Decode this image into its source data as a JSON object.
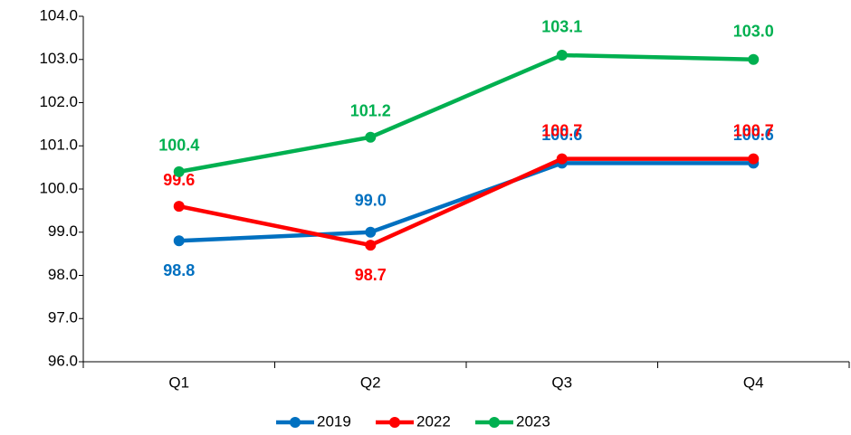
{
  "chart_data": {
    "type": "line",
    "categories": [
      "Q1",
      "Q2",
      "Q3",
      "Q4"
    ],
    "series": [
      {
        "name": "2019",
        "color": "#0070c0",
        "values": [
          98.8,
          99.0,
          100.6,
          100.6
        ],
        "value_labels": [
          "98.8",
          "99.0",
          "100.6",
          "100.6"
        ]
      },
      {
        "name": "2022",
        "color": "#ff0000",
        "values": [
          99.6,
          98.7,
          100.7,
          100.7
        ],
        "value_labels": [
          "99.6",
          "98.7",
          "100.7",
          "100.7"
        ]
      },
      {
        "name": "2023",
        "color": "#00b050",
        "values": [
          100.4,
          101.2,
          103.1,
          103.0
        ],
        "value_labels": [
          "100.4",
          "101.2",
          "103.1",
          "103.0"
        ]
      }
    ],
    "ylim": [
      96,
      104
    ],
    "yticks": [
      {
        "value": 96,
        "label": "96.0"
      },
      {
        "value": 97,
        "label": "97.0"
      },
      {
        "value": 98,
        "label": "98.0"
      },
      {
        "value": 99,
        "label": "99.0"
      },
      {
        "value": 100,
        "label": "100.0"
      },
      {
        "value": 101,
        "label": "101.0"
      },
      {
        "value": 102,
        "label": "102.0"
      },
      {
        "value": 103,
        "label": "103.0"
      },
      {
        "value": 104,
        "label": "104.0"
      }
    ],
    "grid": false,
    "legend": "bottom"
  }
}
